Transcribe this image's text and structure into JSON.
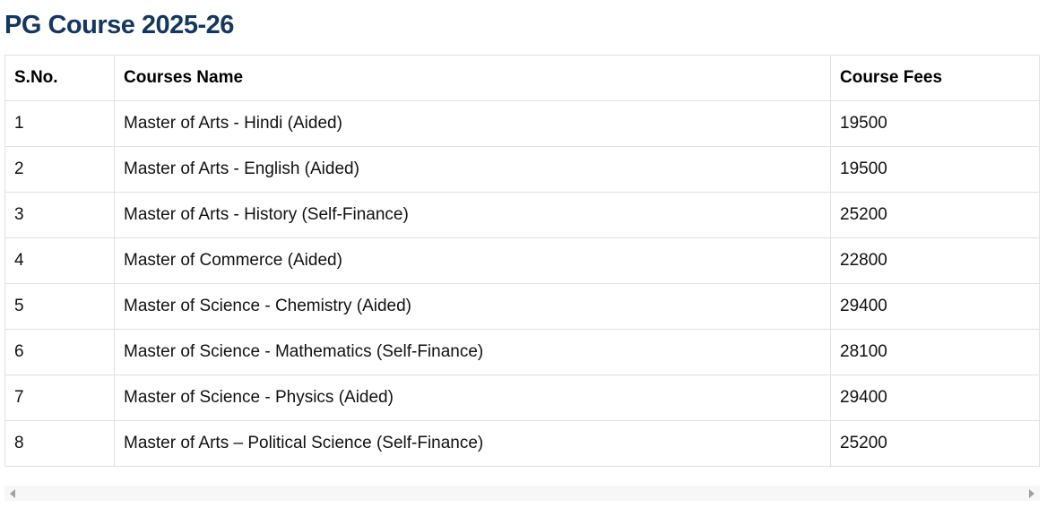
{
  "title": "PG Course 2025-26",
  "table": {
    "headers": [
      "S.No.",
      "Courses Name",
      "Course Fees"
    ],
    "rows": [
      [
        "1",
        "Master of Arts - Hindi (Aided)",
        "19500"
      ],
      [
        "2",
        "Master of Arts - English (Aided)",
        "19500"
      ],
      [
        "3",
        "Master of Arts - History (Self-Finance)",
        "25200"
      ],
      [
        "4",
        "Master of Commerce (Aided)",
        "22800"
      ],
      [
        "5",
        "Master of Science - Chemistry (Aided)",
        "29400"
      ],
      [
        "6",
        "Master of Science - Mathematics (Self-Finance)",
        "28100"
      ],
      [
        "7",
        "Master of Science - Physics (Aided)",
        "29400"
      ],
      [
        "8",
        "Master of Arts – Political Science (Self-Finance)",
        "25200"
      ]
    ]
  },
  "colors": {
    "title": "#15375f",
    "border": "#e1e1e6"
  }
}
